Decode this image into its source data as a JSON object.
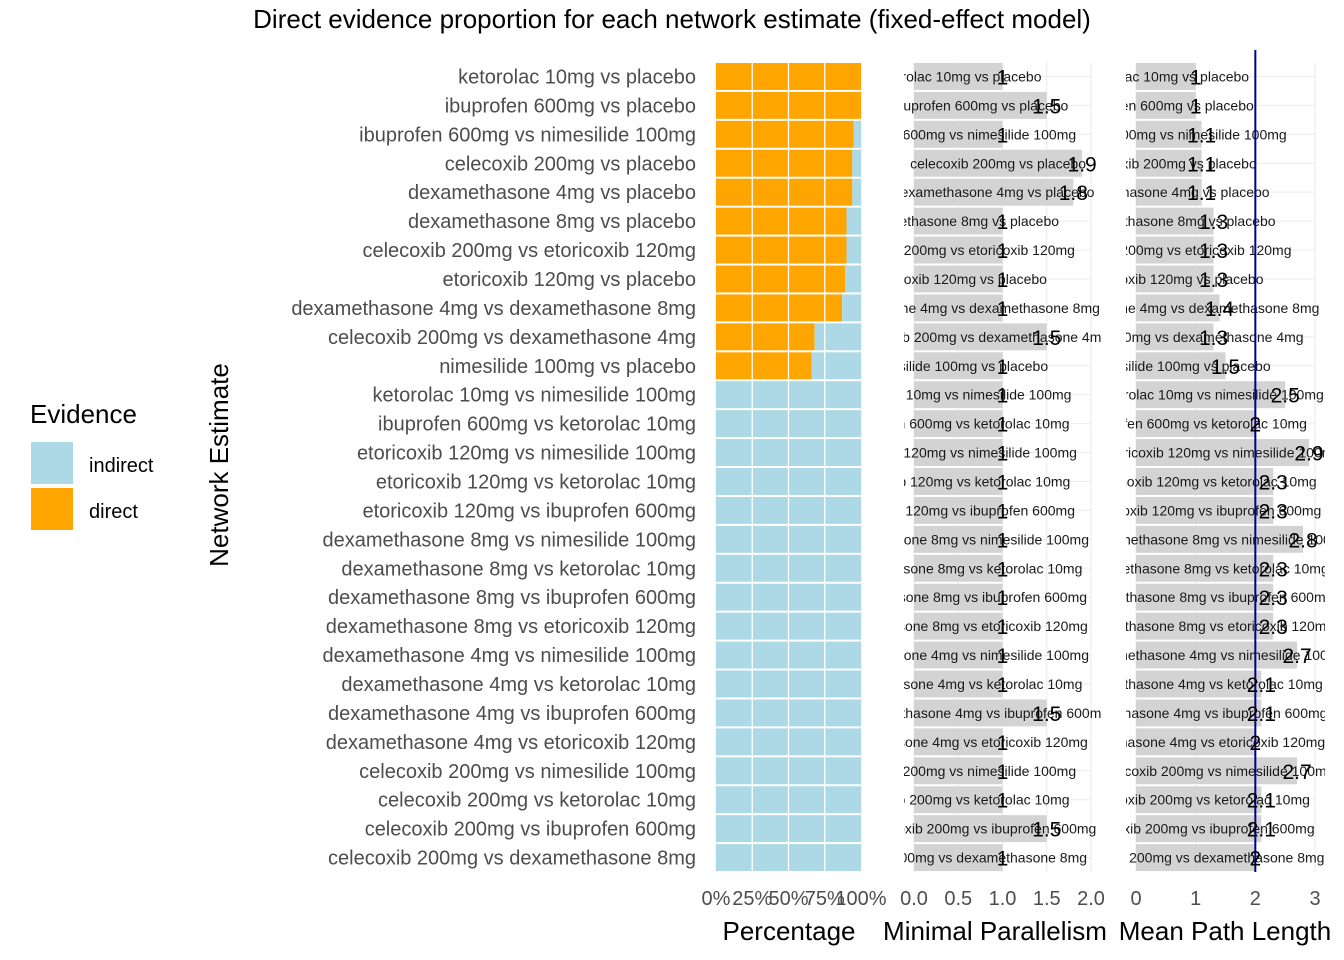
{
  "chart_data": {
    "type": "bar",
    "title": "Direct evidence proportion for each network estimate (fixed-effect model)",
    "ylabel": "Network Estimate",
    "categories": [
      "ketorolac 10mg vs placebo",
      "ibuprofen 600mg vs placebo",
      "ibuprofen 600mg vs nimesilide 100mg",
      "celecoxib 200mg vs placebo",
      "dexamethasone 4mg vs placebo",
      "dexamethasone 8mg vs placebo",
      "celecoxib 200mg vs etoricoxib 120mg",
      "etoricoxib 120mg vs placebo",
      "dexamethasone 4mg vs dexamethasone 8mg",
      "celecoxib 200mg vs dexamethasone 4mg",
      "nimesilide 100mg vs placebo",
      "ketorolac 10mg vs nimesilide 100mg",
      "ibuprofen 600mg vs ketorolac 10mg",
      "etoricoxib 120mg vs nimesilide 100mg",
      "etoricoxib 120mg vs ketorolac 10mg",
      "etoricoxib 120mg vs ibuprofen 600mg",
      "dexamethasone 8mg vs nimesilide 100mg",
      "dexamethasone 8mg vs ketorolac 10mg",
      "dexamethasone 8mg vs ibuprofen 600mg",
      "dexamethasone 8mg vs etoricoxib 120mg",
      "dexamethasone 4mg vs nimesilide 100mg",
      "dexamethasone 4mg vs ketorolac 10mg",
      "dexamethasone 4mg vs ibuprofen 600mg",
      "dexamethasone 4mg vs etoricoxib 120mg",
      "celecoxib 200mg vs nimesilide 100mg",
      "celecoxib 200mg vs ketorolac 10mg",
      "celecoxib 200mg vs ibuprofen 600mg",
      "celecoxib 200mg vs dexamethasone 8mg"
    ],
    "legend": {
      "title": "Evidence",
      "position": "left",
      "items": [
        {
          "label": "indirect",
          "color": "#ADD8E6"
        },
        {
          "label": "direct",
          "color": "#FFA500"
        }
      ]
    },
    "panels": [
      {
        "xlabel": "Percentage",
        "xlim": [
          0,
          1
        ],
        "ticks": [
          "0%",
          "25%",
          "50%",
          "75%",
          "100%"
        ],
        "series": [
          {
            "name": "direct",
            "color": "#FFA500",
            "values": [
              1.0,
              1.0,
              0.95,
              0.94,
              0.94,
              0.9,
              0.9,
              0.89,
              0.87,
              0.68,
              0.66,
              0,
              0,
              0,
              0,
              0,
              0,
              0,
              0,
              0,
              0,
              0,
              0,
              0,
              0,
              0,
              0,
              0
            ]
          },
          {
            "name": "indirect",
            "color": "#ADD8E6",
            "values": [
              0.0,
              0.0,
              0.05,
              0.06,
              0.06,
              0.1,
              0.1,
              0.11,
              0.13,
              0.32,
              0.34,
              1,
              1,
              1,
              1,
              1,
              1,
              1,
              1,
              1,
              1,
              1,
              1,
              1,
              1,
              1,
              1,
              1
            ]
          }
        ]
      },
      {
        "xlabel": "Minimal Parallelism",
        "xlim": [
          0,
          2
        ],
        "ticks": [
          "0.0",
          "0.5",
          "1.0",
          "1.5",
          "2.0"
        ],
        "values": [
          1,
          1.5,
          1,
          1.9,
          1.8,
          1,
          1,
          1,
          1,
          1.5,
          1,
          1,
          1,
          1,
          1,
          1,
          1,
          1,
          1,
          1,
          1,
          1,
          1.5,
          1,
          1,
          1,
          1.5,
          1
        ],
        "labels": [
          "1",
          "1.5",
          "1",
          "1.9",
          "1.8",
          "1",
          "1",
          "1",
          "1",
          "1.5",
          "1",
          "1",
          "1",
          "1",
          "1",
          "1",
          "1",
          "1",
          "1",
          "1",
          "1",
          "1",
          "1.5",
          "1",
          "1",
          "1",
          "1.5",
          "1"
        ],
        "bar_color": "#D3D3D3"
      },
      {
        "xlabel": "Mean Path Length",
        "xlim": [
          0,
          3
        ],
        "ticks": [
          "0",
          "1",
          "2",
          "3"
        ],
        "reference_line": 2,
        "reference_color": "#00008B",
        "values": [
          1,
          1,
          1.1,
          1.1,
          1.1,
          1.3,
          1.3,
          1.3,
          1.4,
          1.3,
          1.5,
          2.5,
          2,
          2.9,
          2.3,
          2.3,
          2.8,
          2.3,
          2.3,
          2.3,
          2.7,
          2.1,
          2.1,
          2,
          2.7,
          2.1,
          2.1,
          2
        ],
        "labels": [
          "1",
          "1",
          "1.1",
          "1.1",
          "1.1",
          "1.3",
          "1.3",
          "1.3",
          "1.4",
          "1.3",
          "1.5",
          "2.5",
          "2",
          "2.9",
          "2.3",
          "2.3",
          "2.8",
          "2.3",
          "2.3",
          "2.3",
          "2.7",
          "2.1",
          "2.1",
          "2",
          "2.7",
          "2.1",
          "2.1",
          "2"
        ],
        "bar_color": "#D3D3D3"
      }
    ],
    "grid": true,
    "colors": {
      "direct": "#FFA500",
      "indirect": "#ADD8E6",
      "bar": "#D3D3D3",
      "reference": "#00008B"
    }
  }
}
